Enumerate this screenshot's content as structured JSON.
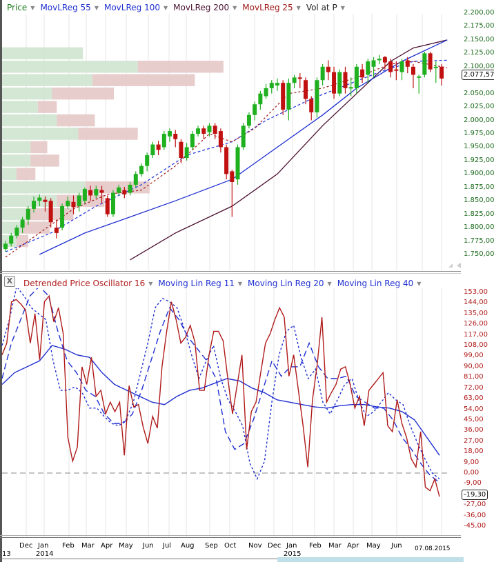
{
  "legend_top": [
    {
      "label": "Price",
      "color": "#1a7a1a"
    },
    {
      "label": "MovLReg 55",
      "color": "#1f2fd0"
    },
    {
      "label": "MovLReg 100",
      "color": "#1f2fd0"
    },
    {
      "label": "MovLReg 200",
      "color": "#4a1030"
    },
    {
      "label": "MovLReg 25",
      "color": "#a01818"
    },
    {
      "label": "Vol at P",
      "color": "#222222"
    }
  ],
  "legend_bottom": [
    {
      "label": "Detrended Price Oscillator 16",
      "color": "#b01a1a"
    },
    {
      "label": "Moving Lin Reg 11",
      "color": "#1f2fd0"
    },
    {
      "label": "Moving Lin Reg 20",
      "color": "#1f2fd0"
    },
    {
      "label": "Moving Lin Reg 40",
      "color": "#1f2fd0"
    }
  ],
  "close_button": "X",
  "price_axis": {
    "labels": [
      "2.200,00",
      "2.175,00",
      "2.150,00",
      "2.125,00",
      "2.100,00",
      "2.050,00",
      "2.025,00",
      "2.000,00",
      "1.975,00",
      "1.950,00",
      "1.925,00",
      "1.900,00",
      "1.875,00",
      "1.850,00",
      "1.825,00",
      "1.800,00",
      "1.775,00",
      "1.750,00"
    ],
    "color": "#1a6a1a",
    "current": "2.077,57"
  },
  "osc_axis": {
    "labels": [
      "153,00",
      "144,00",
      "135,00",
      "126,00",
      "117,00",
      "108,00",
      "99,00",
      "90,00",
      "81,00",
      "72,00",
      "63,00",
      "54,00",
      "45,00",
      "36,00",
      "27,00",
      "18,00",
      "9,00",
      "0,00",
      "-9,00",
      "-27,00",
      "-36,00",
      "-45,00"
    ],
    "color": "#b01a1a",
    "current": "-19,30"
  },
  "x_axis": {
    "months": [
      "Dec",
      "Jan",
      "Feb",
      "Mar",
      "Apr",
      "May",
      "Jun",
      "Jul",
      "Aug",
      "Sep",
      "Oct",
      "Nov",
      "Dec",
      "Jan",
      "Feb",
      "Mar",
      "Apr",
      "May",
      "Jun"
    ],
    "years": [
      "13",
      "2014",
      "2015"
    ],
    "end_date": "07.08.2015"
  },
  "chart_data": [
    {
      "type": "candlestick",
      "title": "Price",
      "ylim": [
        1740,
        2205
      ],
      "ylabel": "Price",
      "x_range": [
        "Nov 2013",
        "07.08.2015"
      ],
      "series_overlays": [
        "MovLReg 55",
        "MovLReg 100",
        "MovLReg 200",
        "MovLReg 25",
        "Vol at P"
      ],
      "last_close": 2077.57,
      "candles": [
        [
          1760,
          1770,
          1755,
          1775
        ],
        [
          1770,
          1785,
          1765,
          1790
        ],
        [
          1785,
          1800,
          1780,
          1805
        ],
        [
          1800,
          1815,
          1790,
          1820
        ],
        [
          1815,
          1835,
          1805,
          1840
        ],
        [
          1835,
          1850,
          1828,
          1858
        ],
        [
          1850,
          1856,
          1840,
          1862
        ],
        [
          1852,
          1848,
          1830,
          1858
        ],
        [
          1850,
          1810,
          1800,
          1855
        ],
        [
          1800,
          1790,
          1780,
          1815
        ],
        [
          1800,
          1840,
          1795,
          1845
        ],
        [
          1840,
          1850,
          1835,
          1858
        ],
        [
          1848,
          1838,
          1825,
          1860
        ],
        [
          1840,
          1860,
          1830,
          1865
        ],
        [
          1850,
          1872,
          1845,
          1875
        ],
        [
          1870,
          1860,
          1850,
          1878
        ],
        [
          1860,
          1872,
          1855,
          1878
        ],
        [
          1870,
          1865,
          1845,
          1878
        ],
        [
          1855,
          1825,
          1820,
          1860
        ],
        [
          1825,
          1865,
          1820,
          1870
        ],
        [
          1865,
          1875,
          1860,
          1880
        ],
        [
          1870,
          1862,
          1855,
          1876
        ],
        [
          1865,
          1880,
          1860,
          1885
        ],
        [
          1880,
          1900,
          1875,
          1905
        ],
        [
          1900,
          1915,
          1895,
          1920
        ],
        [
          1915,
          1935,
          1905,
          1940
        ],
        [
          1935,
          1955,
          1930,
          1960
        ],
        [
          1955,
          1945,
          1935,
          1962
        ],
        [
          1950,
          1975,
          1945,
          1980
        ],
        [
          1970,
          1980,
          1960,
          1985
        ],
        [
          1975,
          1965,
          1950,
          1982
        ],
        [
          1960,
          1930,
          1920,
          1965
        ],
        [
          1930,
          1950,
          1925,
          1958
        ],
        [
          1950,
          1975,
          1945,
          1980
        ],
        [
          1975,
          1985,
          1970,
          1990
        ],
        [
          1985,
          1975,
          1965,
          1990
        ],
        [
          1978,
          1990,
          1970,
          1995
        ],
        [
          1990,
          1975,
          1965,
          1995
        ],
        [
          1980,
          1950,
          1940,
          1985
        ],
        [
          1950,
          1900,
          1890,
          1955
        ],
        [
          1905,
          1885,
          1820,
          1908
        ],
        [
          1890,
          1950,
          1880,
          1955
        ],
        [
          1950,
          1990,
          1945,
          1995
        ],
        [
          1990,
          2010,
          1985,
          2015
        ],
        [
          2010,
          2030,
          2000,
          2035
        ],
        [
          2030,
          2050,
          2020,
          2055
        ],
        [
          2045,
          2060,
          2040,
          2068
        ],
        [
          2060,
          2070,
          2050,
          2075
        ],
        [
          2065,
          2070,
          2055,
          2078
        ],
        [
          2070,
          2020,
          2010,
          2075
        ],
        [
          2020,
          2070,
          2000,
          2078
        ],
        [
          2070,
          2080,
          2060,
          2085
        ],
        [
          2080,
          2078,
          2060,
          2088
        ],
        [
          2075,
          2040,
          2030,
          2080
        ],
        [
          2040,
          2015,
          2000,
          2045
        ],
        [
          2015,
          2075,
          2005,
          2080
        ],
        [
          2075,
          2100,
          2065,
          2105
        ],
        [
          2100,
          2090,
          2075,
          2112
        ],
        [
          2090,
          2050,
          2040,
          2100
        ],
        [
          2050,
          2090,
          2045,
          2095
        ],
        [
          2090,
          2060,
          2050,
          2100
        ],
        [
          2060,
          2062,
          2045,
          2080
        ],
        [
          2060,
          2100,
          2050,
          2105
        ],
        [
          2095,
          2080,
          2070,
          2105
        ],
        [
          2085,
          2110,
          2070,
          2115
        ],
        [
          2100,
          2112,
          2080,
          2118
        ],
        [
          2112,
          2115,
          2105,
          2122
        ],
        [
          2118,
          2108,
          2095,
          2120
        ],
        [
          2110,
          2090,
          2080,
          2115
        ],
        [
          2095,
          2094,
          2075,
          2110
        ],
        [
          2090,
          2110,
          2075,
          2115
        ],
        [
          2112,
          2100,
          2088,
          2118
        ],
        [
          2100,
          2085,
          2060,
          2105
        ],
        [
          2080,
          2082,
          2050,
          2085
        ],
        [
          2085,
          2125,
          2080,
          2128
        ],
        [
          2125,
          2095,
          2090,
          2128
        ],
        [
          2100,
          2100,
          2070,
          2110
        ],
        [
          2100,
          2078,
          2065,
          2105
        ]
      ],
      "volume_profile": [
        {
          "price": 2125,
          "up": 34,
          "down": 0
        },
        {
          "price": 2100,
          "up": 57,
          "down": 36
        },
        {
          "price": 2075,
          "up": 38,
          "down": 43
        },
        {
          "price": 2050,
          "up": 21,
          "down": 26
        },
        {
          "price": 2025,
          "up": 15,
          "down": 8
        },
        {
          "price": 2000,
          "up": 23,
          "down": 16
        },
        {
          "price": 1975,
          "up": 32,
          "down": 25
        },
        {
          "price": 1950,
          "up": 12,
          "down": 7
        },
        {
          "price": 1925,
          "up": 12,
          "down": 12
        },
        {
          "price": 1900,
          "up": 6,
          "down": 8
        },
        {
          "price": 1875,
          "up": 35,
          "down": 27
        },
        {
          "price": 1850,
          "up": 23,
          "down": 20
        },
        {
          "price": 1825,
          "up": 10,
          "down": 20
        },
        {
          "price": 1800,
          "up": 8,
          "down": 12
        },
        {
          "price": 1775,
          "up": 6,
          "down": 5
        }
      ],
      "ma_points": {
        "MovLReg 55": [
          [
            0,
            1755
          ],
          [
            8,
            1790
          ],
          [
            16,
            1840
          ],
          [
            24,
            1880
          ],
          [
            32,
            1935
          ],
          [
            40,
            1960
          ],
          [
            46,
            2000
          ],
          [
            54,
            2040
          ],
          [
            60,
            2065
          ],
          [
            66,
            2090
          ],
          [
            72,
            2110
          ],
          [
            78,
            2112
          ]
        ],
        "MovLReg 100": [
          [
            6,
            1750
          ],
          [
            14,
            1790
          ],
          [
            22,
            1820
          ],
          [
            30,
            1850
          ],
          [
            40,
            1890
          ],
          [
            48,
            1950
          ],
          [
            56,
            2010
          ],
          [
            62,
            2060
          ],
          [
            70,
            2110
          ],
          [
            78,
            2150
          ]
        ],
        "MovLReg 200": [
          [
            22,
            1740
          ],
          [
            30,
            1790
          ],
          [
            40,
            1840
          ],
          [
            48,
            1900
          ],
          [
            56,
            1990
          ],
          [
            62,
            2050
          ],
          [
            68,
            2110
          ],
          [
            72,
            2135
          ],
          [
            78,
            2150
          ]
        ],
        "MovLReg 25": [
          [
            0,
            1745
          ],
          [
            6,
            1790
          ],
          [
            12,
            1835
          ],
          [
            18,
            1862
          ],
          [
            24,
            1870
          ],
          [
            30,
            1915
          ],
          [
            36,
            1975
          ],
          [
            40,
            1960
          ],
          [
            44,
            1985
          ],
          [
            50,
            2050
          ],
          [
            56,
            2060
          ],
          [
            62,
            2080
          ],
          [
            68,
            2105
          ],
          [
            72,
            2110
          ],
          [
            78,
            2098
          ]
        ]
      }
    },
    {
      "type": "line",
      "title": "Detrended Price Oscillator 16",
      "ylim": [
        -50,
        158
      ],
      "zero_line": 0,
      "last_value": -19.3,
      "series": [
        {
          "name": "Detrended Price Oscillator 16",
          "style": "solid",
          "color": "#b01a1a",
          "values": [
            100,
            110,
            145,
            147,
            143,
            138,
            110,
            135,
            96,
            145,
            150,
            128,
            140,
            118,
            30,
            10,
            22,
            90,
            75,
            98,
            65,
            70,
            50,
            60,
            52,
            60,
            15,
            74,
            56,
            58,
            39,
            25,
            48,
            38,
            90,
            120,
            145,
            130,
            110,
            115,
            125,
            111,
            70,
            70,
            100,
            120,
            120,
            112,
            80,
            50,
            75,
            100,
            20,
            52,
            60,
            85,
            110,
            118,
            130,
            140,
            132,
            82,
            100,
            70,
            40,
            5,
            62,
            92,
            132,
            60,
            68,
            75,
            88,
            90,
            75,
            55,
            65,
            40,
            70,
            75,
            80,
            85,
            40,
            35,
            62,
            42,
            30,
            12,
            5,
            35,
            -12,
            -15,
            -5,
            -20
          ]
        },
        {
          "name": "Moving Lin Reg 11",
          "style": "dotted",
          "color": "#1f2fd0",
          "values": [
            108,
            130,
            158,
            150,
            140,
            135,
            130,
            95,
            70,
            70,
            73,
            68,
            55,
            55,
            48,
            42,
            40,
            45,
            60,
            85,
            110,
            140,
            148,
            145,
            140,
            122,
            100,
            80,
            95,
            108,
            80,
            62,
            52,
            40,
            8,
            -5,
            10,
            60,
            100,
            120,
            125,
            98,
            80,
            88,
            60,
            50,
            62,
            75,
            80,
            60,
            48,
            52,
            60,
            68,
            62,
            58,
            40,
            25,
            12,
            0,
            -5
          ]
        },
        {
          "name": "Moving Lin Reg 20",
          "style": "dashed",
          "color": "#1f2fd0",
          "values": [
            80,
            110,
            130,
            150,
            158,
            150,
            120,
            95,
            85,
            70,
            65,
            50,
            42,
            42,
            50,
            70,
            95,
            120,
            140,
            130,
            115,
            105,
            95,
            80,
            35,
            20,
            25,
            45,
            70,
            95,
            82,
            90,
            90,
            110,
            90,
            80,
            80,
            82,
            65,
            60,
            55,
            55,
            45,
            30,
            20,
            8,
            -2,
            -8
          ]
        },
        {
          "name": "Moving Lin Reg 40",
          "style": "solid",
          "color": "#1f2fd0",
          "values": [
            75,
            85,
            90,
            95,
            108,
            105,
            100,
            98,
            85,
            75,
            70,
            65,
            60,
            58,
            65,
            70,
            72,
            76,
            80,
            78,
            72,
            68,
            62,
            60,
            58,
            56,
            55,
            57,
            58,
            58,
            56,
            55,
            52,
            45,
            30,
            15
          ]
        }
      ]
    }
  ]
}
